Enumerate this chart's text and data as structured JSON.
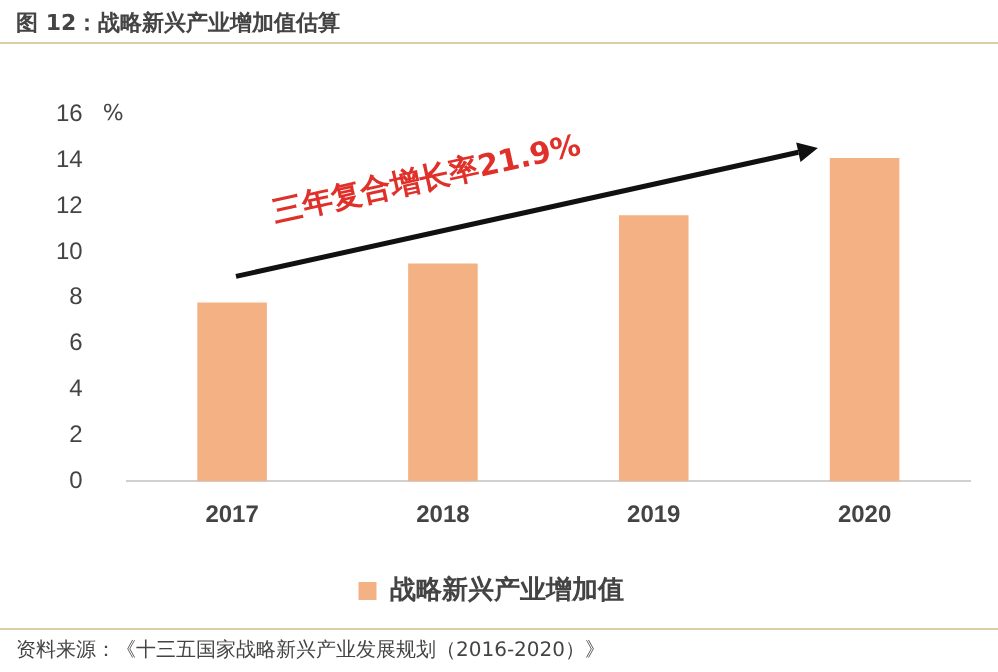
{
  "chart_data": {
    "type": "bar",
    "title": "图 12：战略新兴产业增加值估算",
    "ylabel": "%",
    "categories": [
      "2017",
      "2018",
      "2019",
      "2020"
    ],
    "series": [
      {
        "name": "战略新兴产业增加值",
        "color": "#f4b183",
        "values": [
          7.8,
          9.5,
          11.6,
          14.1
        ]
      }
    ],
    "ylim": [
      0,
      16
    ],
    "yticks": [
      0,
      2,
      4,
      6,
      8,
      10,
      12,
      14,
      16
    ],
    "grid": false,
    "legend": "bottom",
    "annotations": [
      "三年复合增长率21.9%",
      "资料来源：《十三五国家战略新兴产业发展规划（2016-2020）》"
    ]
  }
}
